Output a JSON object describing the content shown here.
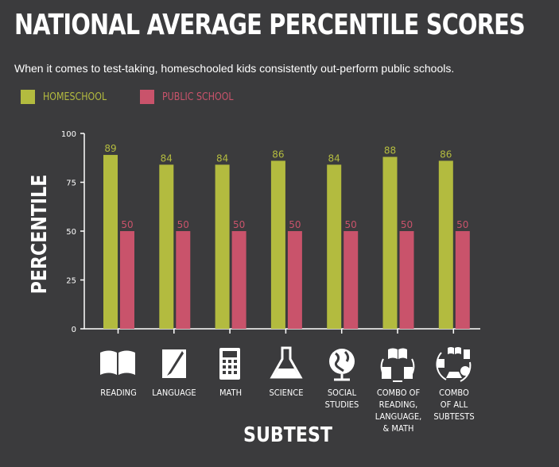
{
  "header": {
    "title": "NATIONAL AVERAGE PERCENTILE SCORES",
    "subtitle": "When it comes to test-taking, homeschooled kids consistently out-perform public schools."
  },
  "legend": [
    {
      "label": "HOMESCHOOL",
      "color": "#b3bb3f"
    },
    {
      "label": "PUBLIC SCHOOL",
      "color": "#c9536b"
    }
  ],
  "icons": [
    "book-icon",
    "paper-pencil-icon",
    "calculator-icon",
    "flask-icon",
    "globe-icon",
    "book-paper-calculator-cycle-icon",
    "all-subjects-cycle-icon"
  ],
  "chart_data": {
    "type": "bar",
    "title": "NATIONAL AVERAGE PERCENTILE SCORES",
    "xlabel": "SUBTEST",
    "ylabel": "PERCENTILE",
    "ylim": [
      0,
      100
    ],
    "yticks": [
      0,
      25,
      50,
      75,
      100
    ],
    "grid": false,
    "legend_position": "top-left",
    "categories": [
      "READING",
      "LANGUAGE",
      "MATH",
      "SCIENCE",
      "SOCIAL\nSTUDIES",
      "COMBO OF\nREADING,\nLANGUAGE,\n& MATH",
      "COMBO\nOF ALL\nSUBTESTS"
    ],
    "series": [
      {
        "name": "HOMESCHOOL",
        "color": "#b3bb3f",
        "values": [
          89,
          84,
          84,
          86,
          84,
          88,
          86
        ]
      },
      {
        "name": "PUBLIC SCHOOL",
        "color": "#c9536b",
        "values": [
          50,
          50,
          50,
          50,
          50,
          50,
          50
        ]
      }
    ]
  }
}
